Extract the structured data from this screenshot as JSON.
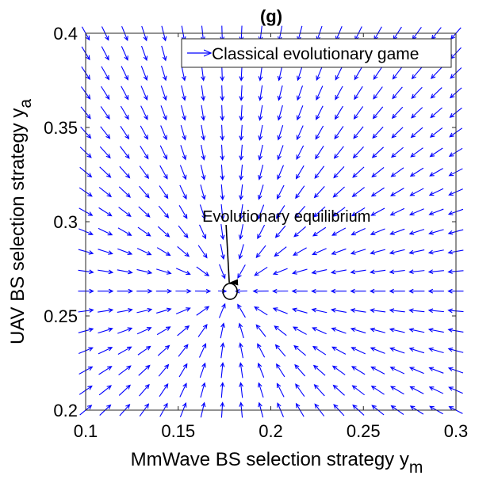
{
  "chart_data": {
    "type": "quiver",
    "title": "(g)",
    "xlabel": "MmWave BS selection strategy y",
    "xlabel_sub": "m",
    "ylabel": "UAV BS selection strategy y",
    "ylabel_sub": "a",
    "xlim": [
      0.1,
      0.3
    ],
    "ylim": [
      0.2,
      0.4
    ],
    "xticks": [
      "0.1",
      "0.15",
      "0.2",
      "0.25",
      "0.3"
    ],
    "yticks": [
      "0.2",
      "0.25",
      "0.3",
      "0.35",
      "0.4"
    ],
    "grid": false,
    "legend": {
      "position": "top-right",
      "entries": [
        "Classical evolutionary game"
      ]
    },
    "series": [
      {
        "name": "Classical evolutionary game",
        "color": "#0000ff",
        "field": {
          "x_start": 0.1,
          "x_end": 0.3,
          "x_count": 20,
          "y_start": 0.2,
          "y_end": 0.4,
          "y_count": 20,
          "direction": "toward-equilibrium"
        }
      }
    ],
    "equilibrium": {
      "x": 0.178,
      "y": 0.263
    },
    "annotation": {
      "text": "Evolutionary equilibrium",
      "x": 0.163,
      "y": 0.3
    }
  }
}
